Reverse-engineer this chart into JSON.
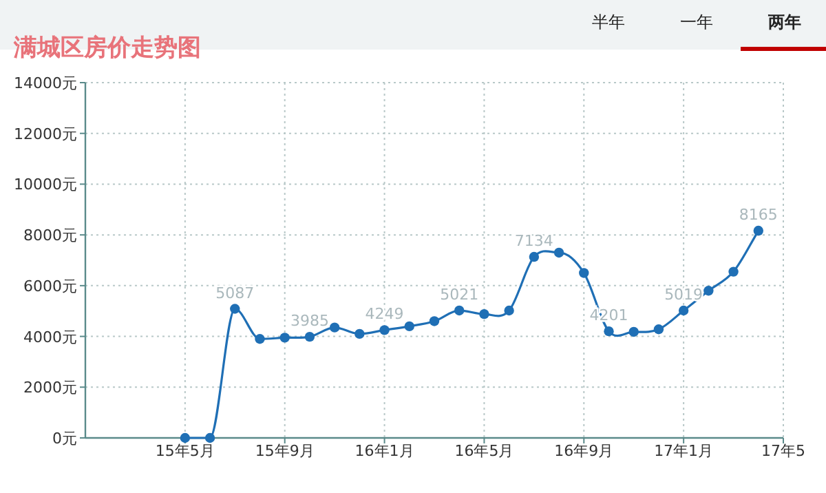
{
  "chart_data": {
    "type": "line",
    "title": "满城区房价走势图",
    "annotations": [
      "半年",
      "一年",
      "两年"
    ],
    "categories": [
      null,
      null,
      null,
      null,
      "15年5月",
      null,
      null,
      null,
      "15年9月",
      null,
      null,
      null,
      "16年1月",
      null,
      null,
      null,
      "16年5月",
      null,
      null,
      null,
      "16年9月",
      null,
      null,
      null,
      "17年1月",
      null,
      null,
      null,
      "17年5"
    ],
    "series": [
      {
        "color": "#1f6fb5",
        "values": [
          null,
          null,
          null,
          null,
          0,
          0,
          5087,
          3900,
          3950,
          3985,
          4350,
          4100,
          4249,
          4400,
          4600,
          5021,
          4880,
          5020,
          7134,
          7300,
          6500,
          4201,
          4180,
          4280,
          5019,
          5800,
          6550,
          8165,
          null
        ],
        "value_labels": [
          null,
          null,
          null,
          null,
          null,
          null,
          "5087",
          null,
          null,
          "3985",
          null,
          null,
          "4249",
          null,
          null,
          "5021",
          null,
          null,
          "7134",
          null,
          null,
          "4201",
          null,
          null,
          "5019",
          null,
          null,
          "8165",
          null
        ]
      }
    ],
    "ylim": [
      0,
      14000
    ],
    "yticks": [
      {
        "value": 0,
        "label": "0元"
      },
      {
        "value": 2000,
        "label": "2000元"
      },
      {
        "value": 4000,
        "label": "4000元"
      },
      {
        "value": 6000,
        "label": "6000元"
      },
      {
        "value": 8000,
        "label": "8000元"
      },
      {
        "value": 10000,
        "label": "10000元"
      },
      {
        "value": 12000,
        "label": "12000元"
      },
      {
        "value": 14000,
        "label": "14000元"
      }
    ],
    "grid": true,
    "marker": "circle",
    "line_style": "solid"
  }
}
